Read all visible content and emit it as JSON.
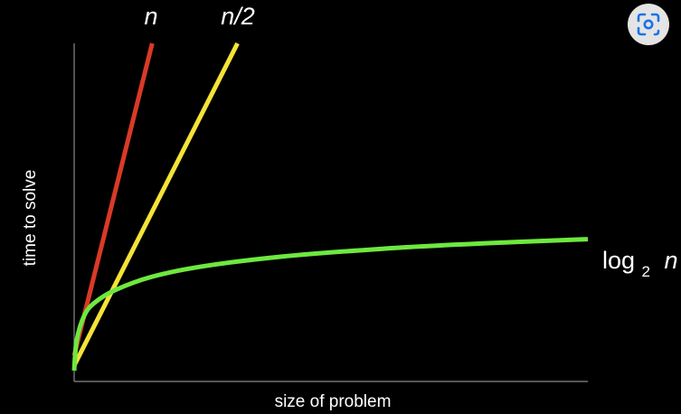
{
  "chart_data": {
    "type": "line",
    "xlabel": "size of problem",
    "ylabel": "time to solve",
    "xlim": [
      0,
      100
    ],
    "ylim": [
      0,
      65
    ],
    "grid": false,
    "legend": "inline labels at line ends",
    "series": [
      {
        "name": "n",
        "label_main": "n",
        "label_sub": "",
        "label_tail": "",
        "color": "#d93a26",
        "x": [
          0,
          15.2
        ],
        "y": [
          3,
          65
        ]
      },
      {
        "name": "n/2",
        "label_main": "n/2",
        "label_sub": "",
        "label_tail": "",
        "color": "#f4e337",
        "x": [
          0,
          31.8
        ],
        "y": [
          1,
          65
        ]
      },
      {
        "name": "log2 n",
        "label_main": "log",
        "label_sub": "2",
        "label_tail": "n",
        "color": "#6ee83f",
        "x": [
          0,
          0.5,
          2,
          4,
          8,
          15,
          25,
          40,
          60,
          80,
          100
        ],
        "y": [
          0,
          6,
          11,
          13.5,
          16,
          18.6,
          20.7,
          22.6,
          24.2,
          25.3,
          26.1
        ]
      }
    ]
  },
  "ui": {
    "lens_icon": "lens-search-icon"
  }
}
